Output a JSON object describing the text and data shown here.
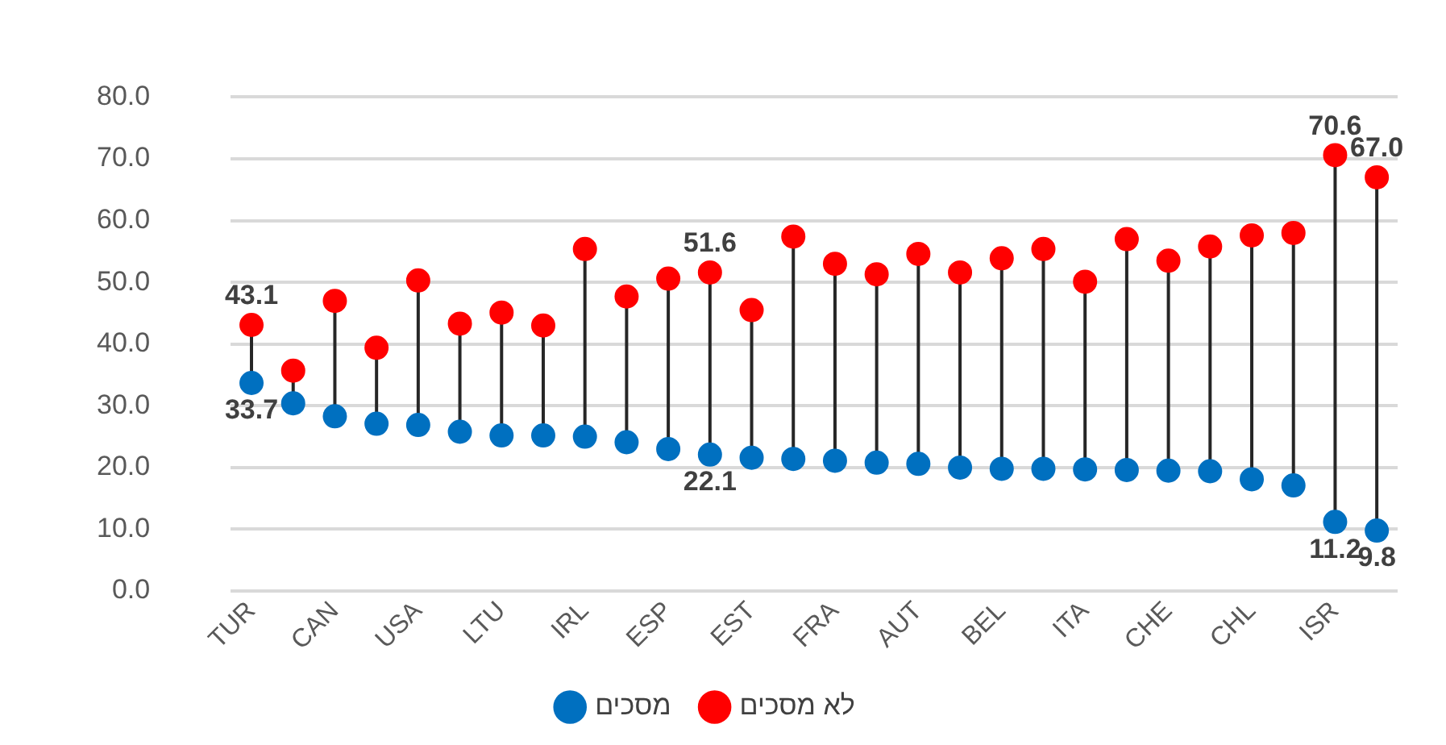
{
  "chart_data": {
    "type": "scatter",
    "categories": [
      "TUR",
      null,
      "CAN",
      null,
      "USA",
      null,
      "LTU",
      null,
      "IRL",
      null,
      "ESP",
      null,
      "EST",
      null,
      "FRA",
      null,
      "AUT",
      null,
      "BEL",
      null,
      "ITA",
      null,
      "CHE",
      null,
      "CHL",
      null,
      "ISR",
      null
    ],
    "series": [
      {
        "name": "מסכים",
        "color": "#0070c0",
        "values": [
          33.7,
          30.4,
          28.3,
          27.1,
          26.9,
          25.8,
          25.2,
          25.2,
          25.0,
          24.1,
          23.0,
          22.1,
          21.6,
          21.4,
          21.1,
          20.8,
          20.6,
          20.0,
          19.8,
          19.8,
          19.7,
          19.6,
          19.5,
          19.4,
          18.1,
          17.1,
          11.2,
          9.8
        ],
        "value_labels": [
          "33.7",
          null,
          null,
          null,
          null,
          null,
          null,
          null,
          null,
          null,
          null,
          "22.1",
          null,
          null,
          null,
          null,
          null,
          null,
          null,
          null,
          null,
          null,
          null,
          null,
          null,
          null,
          "11.2",
          "9.8"
        ]
      },
      {
        "name": "לא מסכים",
        "color": "#ff0000",
        "values": [
          43.1,
          35.7,
          47.0,
          39.4,
          50.3,
          43.3,
          45.1,
          43.0,
          55.4,
          47.7,
          50.6,
          51.6,
          45.5,
          57.4,
          53.0,
          51.3,
          54.6,
          51.6,
          53.9,
          55.4,
          50.1,
          57.0,
          53.5,
          55.8,
          57.6,
          58.0,
          70.6,
          67.0
        ],
        "value_labels": [
          "43.1",
          null,
          null,
          null,
          null,
          null,
          null,
          null,
          null,
          null,
          null,
          "51.6",
          null,
          null,
          null,
          null,
          null,
          null,
          null,
          null,
          null,
          null,
          null,
          null,
          null,
          null,
          "70.6",
          "67.0"
        ]
      }
    ],
    "ylim": [
      0,
      80
    ],
    "yticks": [
      {
        "value": 0,
        "label": "0.0"
      },
      {
        "value": 10,
        "label": "10.0"
      },
      {
        "value": 20,
        "label": "20.0"
      },
      {
        "value": 30,
        "label": "30.0"
      },
      {
        "value": 40,
        "label": "40.0"
      },
      {
        "value": 50,
        "label": "50.0"
      },
      {
        "value": 60,
        "label": "60.0"
      },
      {
        "value": 70,
        "label": "70.0"
      },
      {
        "value": 80,
        "label": "80.0"
      }
    ],
    "grid": "y",
    "legend": "bottom",
    "marker": "circle"
  }
}
